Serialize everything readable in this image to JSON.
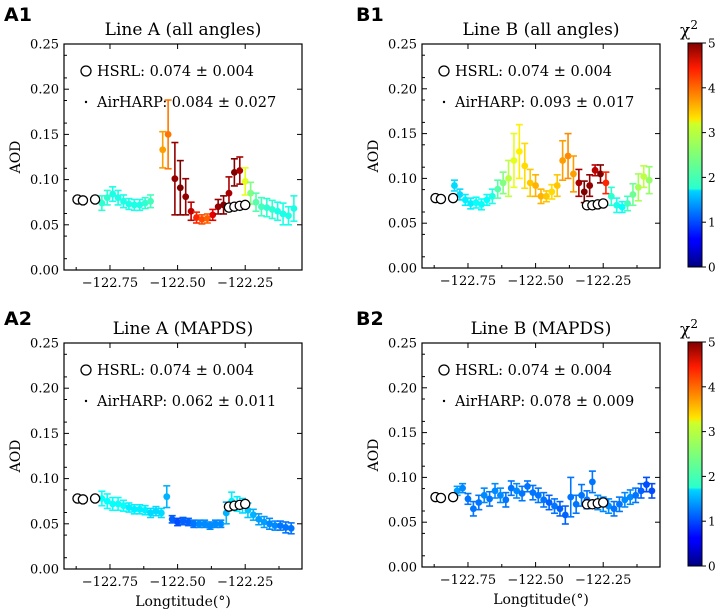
{
  "chart_data": [
    {
      "panel_label": "A1",
      "type": "scatter",
      "title": "Line A (all angles)",
      "ylabel": "AOD",
      "xlabel": "",
      "xlim": [
        -122.92,
        -122.04
      ],
      "ylim": [
        0,
        0.25
      ],
      "xticks": [
        "-122.75",
        "-122.50",
        "-122.25"
      ],
      "yticks": [
        "0.00",
        "0.05",
        "0.10",
        "0.15",
        "0.20",
        "0.25"
      ],
      "legend": {
        "hsrl": "HSRL: 0.074 ± 0.004",
        "airharp": "AirHARP: 0.084 ± 0.027"
      },
      "colorbar": false,
      "hsrl": {
        "x": [
          -122.87,
          -122.85,
          -122.805,
          -122.31,
          -122.29,
          -122.27,
          -122.25
        ],
        "y": [
          0.078,
          0.077,
          0.078,
          0.069,
          0.07,
          0.071,
          0.072
        ]
      },
      "airharp": {
        "x": [
          -122.78,
          -122.76,
          -122.74,
          -122.72,
          -122.7,
          -122.68,
          -122.66,
          -122.64,
          -122.62,
          -122.6,
          -122.555,
          -122.535,
          -122.51,
          -122.49,
          -122.47,
          -122.45,
          -122.43,
          -122.41,
          -122.39,
          -122.37,
          -122.35,
          -122.33,
          -122.31,
          -122.29,
          -122.27,
          -122.25,
          -122.23,
          -122.21,
          -122.19,
          -122.17,
          -122.15,
          -122.13,
          -122.11,
          -122.09,
          -122.07
        ],
        "y": [
          0.074,
          0.08,
          0.084,
          0.08,
          0.076,
          0.073,
          0.072,
          0.072,
          0.074,
          0.076,
          0.133,
          0.15,
          0.101,
          0.091,
          0.081,
          0.065,
          0.058,
          0.056,
          0.057,
          0.061,
          0.07,
          0.072,
          0.085,
          0.108,
          0.11,
          0.098,
          0.085,
          0.075,
          0.07,
          0.069,
          0.067,
          0.065,
          0.062,
          0.06,
          0.068
        ],
        "err": [
          0.008,
          0.008,
          0.008,
          0.008,
          0.007,
          0.006,
          0.006,
          0.006,
          0.006,
          0.007,
          0.02,
          0.038,
          0.04,
          0.03,
          0.02,
          0.01,
          0.006,
          0.005,
          0.005,
          0.006,
          0.008,
          0.01,
          0.018,
          0.015,
          0.015,
          0.015,
          0.012,
          0.01,
          0.01,
          0.01,
          0.01,
          0.01,
          0.012,
          0.01,
          0.014
        ],
        "chi2": [
          2.1,
          2.1,
          2.0,
          2.0,
          2.0,
          2.0,
          2.0,
          2.0,
          2.1,
          2.2,
          3.6,
          3.8,
          4.9,
          5.0,
          4.9,
          4.7,
          4.2,
          4.0,
          3.9,
          4.5,
          4.9,
          5.0,
          4.8,
          5.0,
          4.8,
          3.0,
          2.5,
          2.3,
          2.2,
          2.1,
          2.1,
          2.0,
          2.0,
          2.0,
          2.0
        ]
      }
    },
    {
      "panel_label": "B1",
      "type": "scatter",
      "title": "Line B (all angles)",
      "ylabel": "AOD",
      "xlabel": "",
      "xlim": [
        -122.92,
        -122.04
      ],
      "ylim": [
        0,
        0.25
      ],
      "xticks": [
        "-122.75",
        "-122.50",
        "-122.25"
      ],
      "yticks": [
        "0.00",
        "0.05",
        "0.10",
        "0.15",
        "0.20",
        "0.25"
      ],
      "legend": {
        "hsrl": "HSRL: 0.074 ± 0.004",
        "airharp": "AirHARP: 0.093 ± 0.017"
      },
      "colorbar": true,
      "colorbar_label": "χ2",
      "colorbar_ticks": [
        "0",
        "1",
        "2",
        "3",
        "4",
        "5"
      ],
      "hsrl": {
        "x": [
          -122.87,
          -122.85,
          -122.805,
          -122.31,
          -122.29,
          -122.27,
          -122.25
        ],
        "y": [
          0.078,
          0.077,
          0.078,
          0.07,
          0.07,
          0.071,
          0.072
        ]
      },
      "airharp": {
        "x": [
          -122.8,
          -122.78,
          -122.76,
          -122.74,
          -122.72,
          -122.7,
          -122.68,
          -122.66,
          -122.64,
          -122.62,
          -122.6,
          -122.58,
          -122.56,
          -122.54,
          -122.52,
          -122.5,
          -122.48,
          -122.46,
          -122.44,
          -122.42,
          -122.4,
          -122.38,
          -122.36,
          -122.34,
          -122.32,
          -122.3,
          -122.28,
          -122.26,
          -122.24,
          -122.22,
          -122.2,
          -122.18,
          -122.16,
          -122.14,
          -122.12,
          -122.1,
          -122.08
        ],
        "y": [
          0.092,
          0.082,
          0.076,
          0.072,
          0.073,
          0.071,
          0.076,
          0.08,
          0.088,
          0.095,
          0.1,
          0.12,
          0.13,
          0.114,
          0.095,
          0.092,
          0.08,
          0.08,
          0.085,
          0.092,
          0.12,
          0.125,
          0.105,
          0.095,
          0.085,
          0.092,
          0.109,
          0.105,
          0.095,
          0.08,
          0.07,
          0.068,
          0.072,
          0.082,
          0.09,
          0.102,
          0.098
        ],
        "err": [
          0.006,
          0.006,
          0.006,
          0.006,
          0.006,
          0.006,
          0.006,
          0.008,
          0.01,
          0.012,
          0.02,
          0.03,
          0.03,
          0.025,
          0.015,
          0.012,
          0.008,
          0.006,
          0.008,
          0.012,
          0.022,
          0.025,
          0.02,
          0.015,
          0.012,
          0.012,
          0.006,
          0.01,
          0.012,
          0.01,
          0.008,
          0.006,
          0.008,
          0.012,
          0.015,
          0.012,
          0.015
        ],
        "chi2": [
          1.7,
          1.7,
          1.8,
          1.8,
          1.9,
          1.9,
          1.9,
          2.0,
          2.3,
          2.5,
          2.8,
          3.0,
          3.2,
          3.3,
          3.4,
          3.5,
          3.5,
          3.4,
          3.3,
          3.4,
          3.6,
          3.7,
          3.6,
          4.8,
          5.0,
          4.9,
          4.7,
          5.0,
          4.2,
          2.1,
          2.0,
          1.9,
          2.2,
          2.4,
          2.7,
          2.8,
          2.6
        ]
      }
    },
    {
      "panel_label": "A2",
      "type": "scatter",
      "title": "Line A (MAPDS)",
      "ylabel": "AOD",
      "xlabel": "Longtitude(°)",
      "xlim": [
        -122.92,
        -122.04
      ],
      "ylim": [
        0,
        0.25
      ],
      "xticks": [
        "-122.75",
        "-122.50",
        "-122.25"
      ],
      "yticks": [
        "0.00",
        "0.05",
        "0.10",
        "0.15",
        "0.20",
        "0.25"
      ],
      "legend": {
        "hsrl": "HSRL: 0.074 ± 0.004",
        "airharp": "AirHARP: 0.062 ± 0.011"
      },
      "colorbar": false,
      "hsrl": {
        "x": [
          -122.87,
          -122.85,
          -122.805,
          -122.31,
          -122.29,
          -122.27,
          -122.25
        ],
        "y": [
          0.078,
          0.077,
          0.078,
          0.069,
          0.07,
          0.071,
          0.072
        ]
      },
      "airharp": {
        "x": [
          -122.78,
          -122.76,
          -122.74,
          -122.72,
          -122.7,
          -122.68,
          -122.66,
          -122.64,
          -122.62,
          -122.6,
          -122.58,
          -122.56,
          -122.54,
          -122.52,
          -122.5,
          -122.48,
          -122.46,
          -122.44,
          -122.42,
          -122.4,
          -122.38,
          -122.36,
          -122.34,
          -122.32,
          -122.3,
          -122.28,
          -122.26,
          -122.24,
          -122.22,
          -122.2,
          -122.18,
          -122.16,
          -122.14,
          -122.12,
          -122.1,
          -122.08
        ],
        "y": [
          0.078,
          0.075,
          0.072,
          0.072,
          0.07,
          0.068,
          0.066,
          0.066,
          0.065,
          0.062,
          0.064,
          0.062,
          0.08,
          0.055,
          0.052,
          0.053,
          0.052,
          0.05,
          0.05,
          0.05,
          0.048,
          0.05,
          0.05,
          0.062,
          0.075,
          0.072,
          0.07,
          0.065,
          0.06,
          0.055,
          0.052,
          0.05,
          0.048,
          0.048,
          0.046,
          0.045
        ],
        "err": [
          0.008,
          0.008,
          0.007,
          0.007,
          0.006,
          0.005,
          0.005,
          0.005,
          0.005,
          0.005,
          0.005,
          0.005,
          0.012,
          0.004,
          0.004,
          0.004,
          0.004,
          0.004,
          0.004,
          0.004,
          0.004,
          0.004,
          0.004,
          0.012,
          0.01,
          0.008,
          0.008,
          0.008,
          0.006,
          0.006,
          0.006,
          0.006,
          0.005,
          0.005,
          0.006,
          0.006
        ],
        "chi2": [
          1.9,
          1.9,
          1.9,
          1.9,
          1.9,
          1.8,
          1.8,
          1.8,
          1.8,
          1.7,
          1.7,
          1.7,
          1.5,
          1.1,
          1.0,
          1.1,
          1.1,
          1.2,
          1.3,
          1.3,
          1.3,
          1.3,
          1.3,
          1.5,
          1.8,
          1.8,
          1.7,
          1.6,
          1.5,
          1.4,
          1.4,
          1.3,
          1.3,
          1.2,
          1.2,
          1.2
        ]
      }
    },
    {
      "panel_label": "B2",
      "type": "scatter",
      "title": "Line B (MAPDS)",
      "ylabel": "AOD",
      "xlabel": "Longtitude(°)",
      "xlim": [
        -122.92,
        -122.04
      ],
      "ylim": [
        0,
        0.25
      ],
      "xticks": [
        "-122.75",
        "-122.50",
        "-122.25"
      ],
      "yticks": [
        "0.00",
        "0.05",
        "0.10",
        "0.15",
        "0.20",
        "0.25"
      ],
      "legend": {
        "hsrl": "HSRL: 0.074 ± 0.004",
        "airharp": "AirHARP: 0.078 ± 0.009"
      },
      "colorbar": true,
      "colorbar_label": "χ2",
      "colorbar_ticks": [
        "0",
        "1",
        "2",
        "3",
        "4",
        "5"
      ],
      "hsrl": {
        "x": [
          -122.87,
          -122.85,
          -122.805,
          -122.31,
          -122.29,
          -122.27,
          -122.25
        ],
        "y": [
          0.078,
          0.077,
          0.078,
          0.07,
          0.07,
          0.071,
          0.072
        ]
      },
      "airharp": {
        "x": [
          -122.79,
          -122.77,
          -122.75,
          -122.73,
          -122.71,
          -122.69,
          -122.67,
          -122.65,
          -122.63,
          -122.61,
          -122.59,
          -122.57,
          -122.55,
          -122.53,
          -122.51,
          -122.49,
          -122.47,
          -122.45,
          -122.43,
          -122.41,
          -122.39,
          -122.37,
          -122.35,
          -122.33,
          -122.31,
          -122.29,
          -122.27,
          -122.25,
          -122.23,
          -122.21,
          -122.19,
          -122.17,
          -122.15,
          -122.13,
          -122.11,
          -122.09,
          -122.07
        ],
        "y": [
          0.085,
          0.088,
          0.076,
          0.065,
          0.072,
          0.08,
          0.076,
          0.085,
          0.08,
          0.075,
          0.088,
          0.085,
          0.082,
          0.09,
          0.083,
          0.08,
          0.075,
          0.072,
          0.068,
          0.065,
          0.058,
          0.078,
          0.07,
          0.08,
          0.075,
          0.095,
          0.072,
          0.07,
          0.068,
          0.065,
          0.07,
          0.075,
          0.078,
          0.08,
          0.085,
          0.092,
          0.085
        ],
        "err": [
          0.005,
          0.005,
          0.006,
          0.008,
          0.008,
          0.008,
          0.008,
          0.008,
          0.008,
          0.008,
          0.008,
          0.008,
          0.008,
          0.006,
          0.008,
          0.008,
          0.008,
          0.008,
          0.008,
          0.008,
          0.01,
          0.022,
          0.01,
          0.012,
          0.01,
          0.012,
          0.008,
          0.008,
          0.008,
          0.008,
          0.008,
          0.008,
          0.008,
          0.008,
          0.008,
          0.008,
          0.008
        ],
        "chi2": [
          1.4,
          1.3,
          1.2,
          1.2,
          1.2,
          1.3,
          1.2,
          1.3,
          1.3,
          1.2,
          1.2,
          1.3,
          1.2,
          1.2,
          1.2,
          1.2,
          1.2,
          1.1,
          1.2,
          1.1,
          1.1,
          1.2,
          1.2,
          1.2,
          1.2,
          1.2,
          1.3,
          1.3,
          1.3,
          1.2,
          1.2,
          1.3,
          1.3,
          1.2,
          1.1,
          1.0,
          1.0
        ]
      }
    }
  ]
}
